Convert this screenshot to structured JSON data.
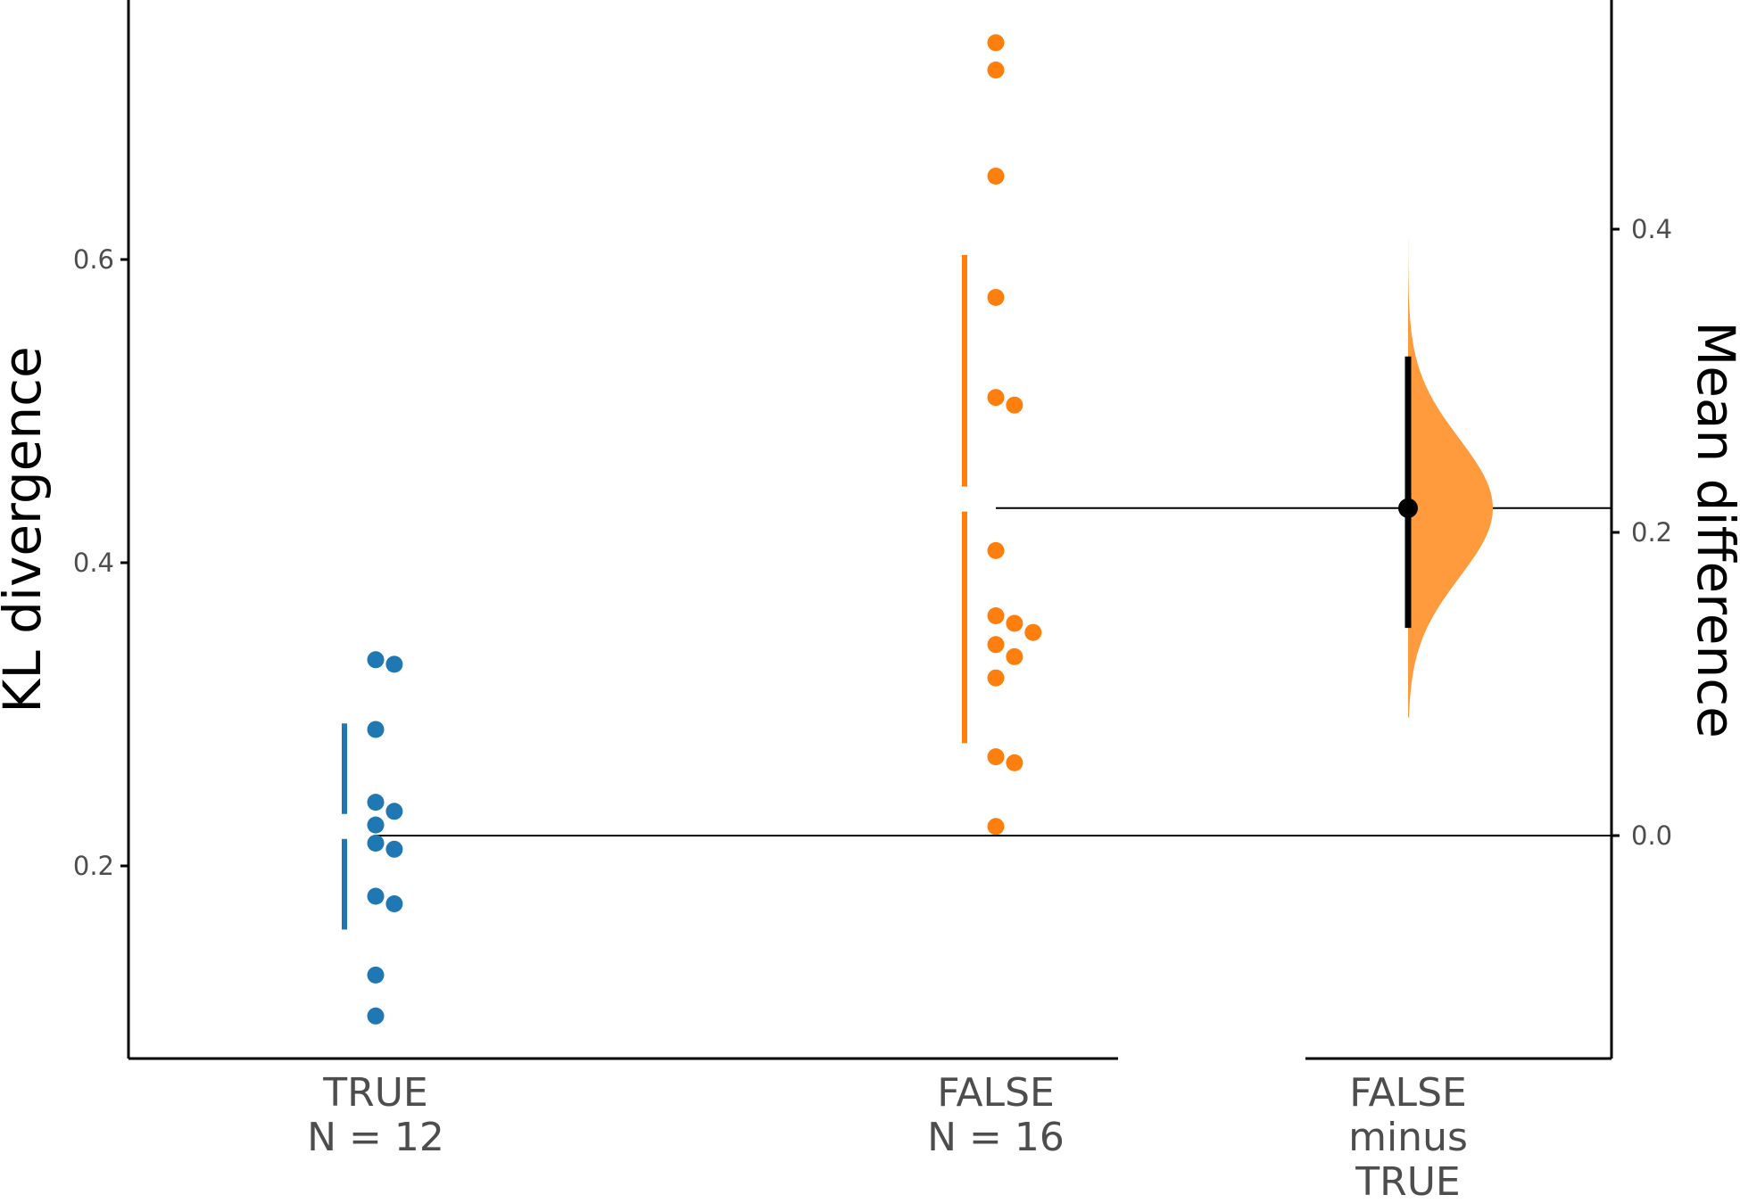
{
  "chart_data": {
    "type": "scatter",
    "ylabel": "KL divergence",
    "ylabel_right": "Mean difference",
    "yticks_left": [
      "0.2",
      "0.4",
      "0.6"
    ],
    "yticks_right": [
      "0.0",
      "0.2",
      "0.4"
    ],
    "ylim_left": [
      0.08,
      0.78
    ],
    "ylim_right": [
      -0.15,
      0.55
    ],
    "groups": [
      {
        "label": "TRUE",
        "n_label": "N = 12",
        "color": "#1f77b4",
        "values": [
          0.333,
          0.336,
          0.29,
          0.242,
          0.236,
          0.227,
          0.215,
          0.211,
          0.18,
          0.175,
          0.128,
          0.101
        ],
        "mean": 0.226,
        "sd": 0.068
      },
      {
        "label": "FALSE",
        "n_label": "N = 16",
        "color": "#ff7f0e",
        "values": [
          0.743,
          0.725,
          0.655,
          0.575,
          0.509,
          0.504,
          0.408,
          0.36,
          0.365,
          0.354,
          0.346,
          0.338,
          0.324,
          0.272,
          0.268,
          0.226
        ],
        "mean": 0.442,
        "sd": 0.161
      }
    ],
    "contrast": {
      "label_lines": [
        "FALSE",
        "minus",
        "TRUE"
      ],
      "mean_diff": 0.216,
      "ci": [
        0.137,
        0.316
      ],
      "fill_color": "#ff9a3d"
    }
  }
}
